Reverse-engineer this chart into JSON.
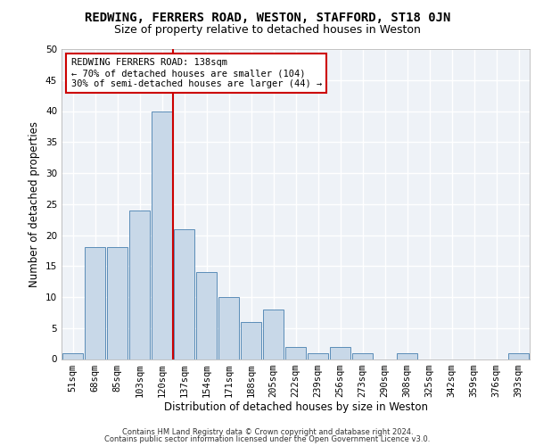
{
  "title1": "REDWING, FERRERS ROAD, WESTON, STAFFORD, ST18 0JN",
  "title2": "Size of property relative to detached houses in Weston",
  "xlabel": "Distribution of detached houses by size in Weston",
  "ylabel": "Number of detached properties",
  "footer1": "Contains HM Land Registry data © Crown copyright and database right 2024.",
  "footer2": "Contains public sector information licensed under the Open Government Licence v3.0.",
  "bar_color": "#c8d8e8",
  "bar_edge_color": "#5b8db8",
  "annotation_line1": "REDWING FERRERS ROAD: 138sqm",
  "annotation_line2": "← 70% of detached houses are smaller (104)",
  "annotation_line3": "30% of semi-detached houses are larger (44) →",
  "categories": [
    "51sqm",
    "68sqm",
    "85sqm",
    "103sqm",
    "120sqm",
    "137sqm",
    "154sqm",
    "171sqm",
    "188sqm",
    "205sqm",
    "222sqm",
    "239sqm",
    "256sqm",
    "273sqm",
    "290sqm",
    "308sqm",
    "325sqm",
    "342sqm",
    "359sqm",
    "376sqm",
    "393sqm"
  ],
  "values": [
    1,
    18,
    18,
    24,
    40,
    21,
    14,
    10,
    6,
    8,
    2,
    1,
    2,
    1,
    0,
    1,
    0,
    0,
    0,
    0,
    1
  ],
  "ylim": [
    0,
    50
  ],
  "yticks": [
    0,
    5,
    10,
    15,
    20,
    25,
    30,
    35,
    40,
    45,
    50
  ],
  "background_color": "#eef2f7",
  "grid_color": "#ffffff",
  "title1_fontsize": 10,
  "title2_fontsize": 9,
  "tick_fontsize": 7.5,
  "ylabel_fontsize": 8.5,
  "xlabel_fontsize": 8.5,
  "footer_fontsize": 6,
  "annotation_fontsize": 7.5
}
